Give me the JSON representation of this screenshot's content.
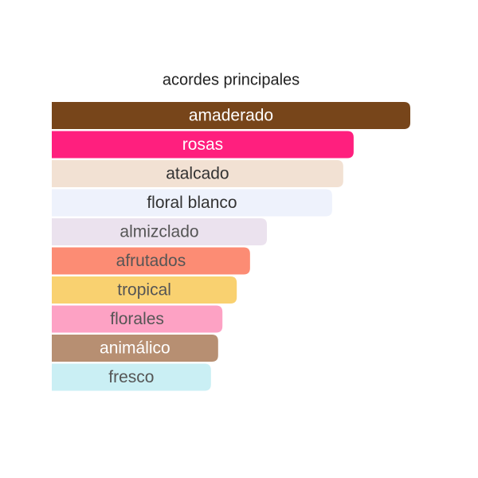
{
  "chart_data": {
    "type": "bar",
    "orientation": "horizontal",
    "title": "acordes principales",
    "categories": [
      "amaderado",
      "rosas",
      "atalcado",
      "floral blanco",
      "almizclado",
      "afrutados",
      "tropical",
      "florales",
      "animálico",
      "fresco"
    ],
    "values": [
      100,
      84.2,
      81.3,
      78.2,
      60,
      55.3,
      51.6,
      47.6,
      46.4,
      44.4
    ],
    "colors": [
      "#77451a",
      "#ff1f7e",
      "#f2e1d3",
      "#eef2fc",
      "#ebe2ee",
      "#fc8c74",
      "#f9d170",
      "#fda2c4",
      "#b78f72",
      "#caeff4"
    ],
    "label_colors": [
      "#ffffff",
      "#ffffff",
      "#333333",
      "#333333",
      "#555555",
      "#555555",
      "#555555",
      "#555555",
      "#ffffff",
      "#555555"
    ],
    "xlim": [
      0,
      100
    ]
  }
}
